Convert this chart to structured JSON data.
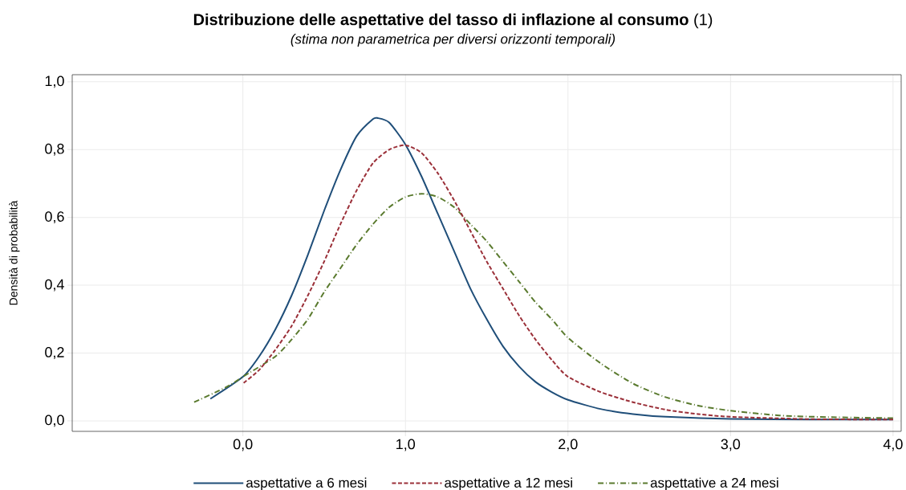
{
  "chart_data": {
    "type": "line",
    "title": "**Distribuzione delle aspettative del tasso di inflazione al consumo** (1)",
    "subtitle": "(stima non parametrica per diversi orizzonti temporali)",
    "ylabel": "Densità di probabilità",
    "xlim": [
      -1.05,
      4.05
    ],
    "ylim": [
      -0.031,
      1.021
    ],
    "xticks": [
      {
        "value": 0,
        "label": "0,0"
      },
      {
        "value": 1,
        "label": "1,0"
      },
      {
        "value": 2,
        "label": "2,0"
      },
      {
        "value": 3,
        "label": "3,0"
      },
      {
        "value": 4,
        "label": "4,0"
      }
    ],
    "yticks": [
      {
        "value": 0,
        "label": "0,0"
      },
      {
        "value": 0.2,
        "label": "0,2"
      },
      {
        "value": 0.4,
        "label": "0,4"
      },
      {
        "value": 0.6,
        "label": "0,6"
      },
      {
        "value": 0.8,
        "label": "0,8"
      },
      {
        "value": 1,
        "label": "1,0"
      }
    ],
    "grid": true,
    "legend": "bottom",
    "marker": "none",
    "series": [
      {
        "name": "aspettative a 6 mesi",
        "color": "#1f4e79",
        "line_style": "solid",
        "x": [
          -0.2,
          0,
          0.1,
          0.2,
          0.3,
          0.4,
          0.5,
          0.6,
          0.7,
          0.8,
          0.83,
          0.9,
          1.0,
          1.1,
          1.2,
          1.3,
          1.4,
          1.5,
          1.6,
          1.7,
          1.8,
          1.9,
          2.0,
          2.2,
          2.4,
          2.6,
          3.0,
          3.5,
          4.0
        ],
        "values": [
          0.065,
          0.13,
          0.19,
          0.27,
          0.37,
          0.49,
          0.62,
          0.74,
          0.84,
          0.89,
          0.893,
          0.88,
          0.815,
          0.72,
          0.61,
          0.5,
          0.39,
          0.3,
          0.22,
          0.16,
          0.115,
          0.085,
          0.062,
          0.035,
          0.02,
          0.012,
          0.006,
          0.004,
          0.004
        ]
      },
      {
        "name": "aspettative a 12 mesi",
        "color": "#9b3039",
        "line_style": "dashed",
        "x": [
          0,
          0.1,
          0.2,
          0.3,
          0.4,
          0.5,
          0.6,
          0.7,
          0.8,
          0.9,
          1.0,
          1.1,
          1.2,
          1.3,
          1.4,
          1.5,
          1.6,
          1.7,
          1.8,
          1.9,
          2.0,
          2.2,
          2.4,
          2.6,
          2.8,
          3.0,
          3.5,
          4.0
        ],
        "values": [
          0.11,
          0.15,
          0.21,
          0.28,
          0.37,
          0.47,
          0.58,
          0.68,
          0.76,
          0.8,
          0.813,
          0.79,
          0.73,
          0.65,
          0.56,
          0.47,
          0.39,
          0.31,
          0.24,
          0.18,
          0.13,
          0.085,
          0.055,
          0.033,
          0.02,
          0.012,
          0.005,
          0.004
        ]
      },
      {
        "name": "aspettative a 24 mesi",
        "color": "#5a7a2e",
        "line_style": "dashdot",
        "x": [
          -0.3,
          -0.1,
          0,
          0.2,
          0.3,
          0.4,
          0.5,
          0.6,
          0.7,
          0.8,
          0.9,
          1.0,
          1.1,
          1.2,
          1.3,
          1.4,
          1.5,
          1.6,
          1.7,
          1.8,
          1.9,
          2.0,
          2.2,
          2.4,
          2.6,
          2.8,
          3.0,
          3.3,
          3.6,
          4.0
        ],
        "values": [
          0.055,
          0.1,
          0.13,
          0.19,
          0.24,
          0.3,
          0.38,
          0.45,
          0.52,
          0.58,
          0.63,
          0.66,
          0.67,
          0.66,
          0.63,
          0.58,
          0.53,
          0.47,
          0.41,
          0.35,
          0.3,
          0.245,
          0.17,
          0.11,
          0.07,
          0.045,
          0.03,
          0.016,
          0.011,
          0.008
        ]
      }
    ]
  }
}
